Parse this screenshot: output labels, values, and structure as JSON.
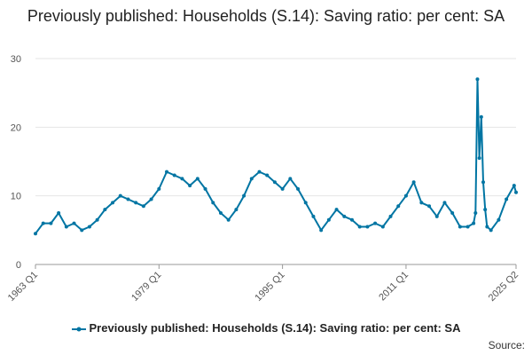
{
  "title": "Previously published: Households (S.14): Saving ratio: per cent: SA",
  "source_label": "Source:",
  "colors": {
    "series": "#0075a3",
    "grid": "#e6e6e6",
    "axis": "#999999"
  },
  "chart_data": {
    "type": "line",
    "title": "Previously published: Households (S.14): Saving ratio: per cent: SA",
    "xlabel": "",
    "ylabel": "",
    "x_tick_labels": [
      "1963 Q1",
      "1979 Q1",
      "1995 Q1",
      "2011 Q1",
      "2025 Q2"
    ],
    "y_ticks": [
      0,
      10,
      20,
      30
    ],
    "ylim": [
      0,
      30
    ],
    "grid": true,
    "legend_position": "bottom",
    "series": [
      {
        "name": "Previously published: Households (S.14): Saving ratio: per cent: SA",
        "x": [
          1963.0,
          1964.0,
          1965.0,
          1966.0,
          1967.0,
          1968.0,
          1969.0,
          1970.0,
          1971.0,
          1972.0,
          1973.0,
          1974.0,
          1975.0,
          1976.0,
          1977.0,
          1978.0,
          1979.0,
          1980.0,
          1981.0,
          1982.0,
          1983.0,
          1984.0,
          1985.0,
          1986.0,
          1987.0,
          1988.0,
          1989.0,
          1990.0,
          1991.0,
          1992.0,
          1993.0,
          1994.0,
          1995.0,
          1996.0,
          1997.0,
          1998.0,
          1999.0,
          2000.0,
          2001.0,
          2002.0,
          2003.0,
          2004.0,
          2005.0,
          2006.0,
          2007.0,
          2008.0,
          2009.0,
          2010.0,
          2011.0,
          2012.0,
          2013.0,
          2014.0,
          2015.0,
          2016.0,
          2017.0,
          2018.0,
          2019.0,
          2019.75,
          2020.0,
          2020.25,
          2020.5,
          2020.75,
          2021.0,
          2021.25,
          2021.5,
          2022.0,
          2023.0,
          2024.0,
          2025.0,
          2025.25
        ],
        "values": [
          4.5,
          6.0,
          6.0,
          7.5,
          5.5,
          6.0,
          5.0,
          5.5,
          6.5,
          8.0,
          9.0,
          10.0,
          9.5,
          9.0,
          8.5,
          9.5,
          11.0,
          13.5,
          13.0,
          12.5,
          11.5,
          12.5,
          11.0,
          9.0,
          7.5,
          6.5,
          8.0,
          10.0,
          12.5,
          13.5,
          13.0,
          12.0,
          11.0,
          12.5,
          11.0,
          9.0,
          7.0,
          5.0,
          6.5,
          8.0,
          7.0,
          6.5,
          5.5,
          5.5,
          6.0,
          5.5,
          7.0,
          8.5,
          10.0,
          12.0,
          9.0,
          8.5,
          7.0,
          9.0,
          7.5,
          5.5,
          5.5,
          6.0,
          7.5,
          27.0,
          15.5,
          21.5,
          12.0,
          8.0,
          5.5,
          5.0,
          6.5,
          9.5,
          11.5,
          10.5
        ]
      }
    ]
  }
}
